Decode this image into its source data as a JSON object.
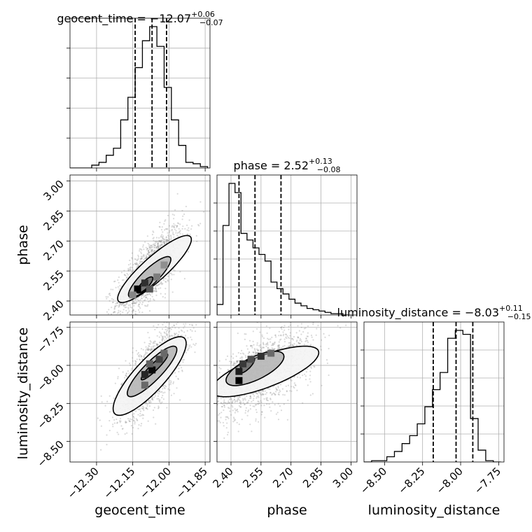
{
  "chart_data": {
    "type": "corner",
    "parameters": [
      "geocent_time",
      "phase",
      "luminosity_distance"
    ],
    "grid": true,
    "titles": {
      "geocent_time": {
        "name": "geocent_time",
        "median": "−12.07",
        "plus": "+0.06",
        "minus": "−0.07"
      },
      "phase": {
        "name": "phase",
        "median": "2.52",
        "plus": "+0.13",
        "minus": "−0.08"
      },
      "luminosity_distance": {
        "name": "luminosity_distance",
        "median": "−8.03",
        "plus": "+0.11",
        "minus": "−0.15"
      }
    },
    "ranges": {
      "geocent_time": [
        -12.41,
        -11.83
      ],
      "phase": [
        2.33,
        3.03
      ],
      "luminosity_distance": [
        -8.635,
        -7.715
      ]
    },
    "tick_labels": {
      "geocent_time": [
        "−12.30",
        "−12.15",
        "−12.00",
        "−11.85"
      ],
      "phase": [
        "2.40",
        "2.55",
        "2.70",
        "2.85",
        "3.00"
      ],
      "luminosity_distance": [
        "−8.50",
        "−8.25",
        "−8.00",
        "−7.75"
      ]
    },
    "tick_values": {
      "geocent_time": [
        -12.3,
        -12.15,
        -12.0,
        -11.85
      ],
      "phase": [
        2.4,
        2.55,
        2.7,
        2.85,
        3.0
      ],
      "luminosity_distance": [
        -8.5,
        -8.25,
        -8.0,
        -7.75
      ]
    },
    "quantiles": {
      "geocent_time": [
        -12.14,
        -12.07,
        -12.01
      ],
      "phase": [
        2.44,
        2.52,
        2.65
      ],
      "luminosity_distance": [
        -8.18,
        -8.03,
        -7.92
      ]
    },
    "histograms": {
      "geocent_time": {
        "edges": [
          -12.41,
          -12.38,
          -12.35,
          -12.32,
          -12.29,
          -12.26,
          -12.23,
          -12.2,
          -12.17,
          -12.14,
          -12.11,
          -12.08,
          -12.05,
          -12.02,
          -11.99,
          -11.96,
          -11.93,
          -11.9,
          -11.87,
          -11.84
        ],
        "counts": [
          0,
          0,
          0,
          2,
          4,
          9,
          14,
          34,
          50,
          71,
          90,
          100,
          86,
          57,
          34,
          16,
          4,
          3,
          1
        ]
      },
      "phase": {
        "edges": [
          2.33,
          2.36,
          2.39,
          2.42,
          2.45,
          2.48,
          2.51,
          2.54,
          2.57,
          2.6,
          2.63,
          2.66,
          2.69,
          2.72,
          2.75,
          2.78,
          2.81,
          2.84,
          2.87,
          2.9,
          2.93,
          2.96,
          2.99
        ],
        "counts": [
          8,
          68,
          100,
          93,
          62,
          57,
          51,
          46,
          41,
          25,
          20,
          16,
          12,
          9,
          7,
          5,
          4,
          3,
          2,
          1,
          1,
          0
        ]
      },
      "luminosity_distance": {
        "edges": [
          -8.635,
          -8.585,
          -8.535,
          -8.485,
          -8.435,
          -8.385,
          -8.335,
          -8.285,
          -8.235,
          -8.185,
          -8.135,
          -8.085,
          -8.035,
          -7.985,
          -7.935,
          -7.885,
          -7.835,
          -7.785,
          -7.735
        ],
        "counts": [
          0,
          1,
          1,
          4,
          8,
          14,
          20,
          29,
          42,
          55,
          68,
          94,
          100,
          97,
          33,
          9,
          1,
          0
        ]
      }
    },
    "pairs": [
      {
        "x": "geocent_time",
        "y": "phase",
        "scatter": {
          "center": [
            -12.08,
            2.55
          ],
          "sd": [
            0.07,
            0.11
          ],
          "corr": 0.75,
          "n": 1600
        },
        "density_cells": [
          {
            "x": -12.13,
            "y": 2.46,
            "v": 1.0
          },
          {
            "x": -12.1,
            "y": 2.49,
            "v": 0.75
          },
          {
            "x": -12.08,
            "y": 2.46,
            "v": 0.55
          },
          {
            "x": -12.05,
            "y": 2.52,
            "v": 0.35
          },
          {
            "x": -12.02,
            "y": 2.58,
            "v": 0.25
          },
          {
            "x": -12.15,
            "y": 2.43,
            "v": 0.3
          }
        ],
        "contours": [
          {
            "center": [
              -12.1,
              2.48
            ],
            "semi_major": 0.05,
            "semi_minor": 0.016,
            "angle": 52
          },
          {
            "center": [
              -12.08,
              2.52
            ],
            "semi_major": 0.13,
            "semi_minor": 0.035,
            "angle": 50
          },
          {
            "center": [
              -12.06,
              2.56
            ],
            "semi_major": 0.22,
            "semi_minor": 0.055,
            "angle": 48
          }
        ]
      },
      {
        "x": "geocent_time",
        "y": "luminosity_distance",
        "scatter": {
          "center": [
            -12.07,
            -8.05
          ],
          "sd": [
            0.07,
            0.15
          ],
          "corr": 0.72,
          "n": 1600
        },
        "density_cells": [
          {
            "x": -12.07,
            "y": -8.03,
            "v": 0.95
          },
          {
            "x": -12.1,
            "y": -8.06,
            "v": 0.8
          },
          {
            "x": -12.04,
            "y": -7.96,
            "v": 0.65
          },
          {
            "x": -12.1,
            "y": -8.13,
            "v": 0.45
          },
          {
            "x": -12.02,
            "y": -7.92,
            "v": 0.45
          },
          {
            "x": -12.08,
            "y": -7.99,
            "v": 0.5
          }
        ],
        "contours": [
          {
            "center": [
              -12.06,
              -8.01
            ],
            "semi_major": 0.1,
            "semi_minor": 0.018,
            "angle": 58
          },
          {
            "center": [
              -12.07,
              -8.04
            ],
            "semi_major": 0.19,
            "semi_minor": 0.045,
            "angle": 60
          },
          {
            "center": [
              -12.08,
              -8.07
            ],
            "semi_major": 0.29,
            "semi_minor": 0.075,
            "angle": 62
          }
        ]
      },
      {
        "x": "phase",
        "y": "luminosity_distance",
        "scatter": {
          "center": [
            2.55,
            -8.05
          ],
          "sd": [
            0.13,
            0.14
          ],
          "corr": 0.6,
          "n": 1600
        },
        "density_cells": [
          {
            "x": 2.44,
            "y": -8.1,
            "v": 1.0
          },
          {
            "x": 2.44,
            "y": -8.04,
            "v": 0.85
          },
          {
            "x": 2.46,
            "y": -7.99,
            "v": 0.7
          },
          {
            "x": 2.5,
            "y": -7.96,
            "v": 0.6
          },
          {
            "x": 2.55,
            "y": -7.94,
            "v": 0.75
          },
          {
            "x": 2.6,
            "y": -7.92,
            "v": 0.45
          }
        ],
        "contours": [
          {
            "center": [
              2.48,
              -8.0
            ],
            "semi_major": 0.06,
            "semi_minor": 0.02,
            "angle": 55
          },
          {
            "center": [
              2.52,
              -8.02
            ],
            "semi_major": 0.17,
            "semi_minor": 0.07,
            "angle": 35
          },
          {
            "center": [
              2.57,
              -8.04
            ],
            "semi_major": 0.3,
            "semi_minor": 0.1,
            "angle": 28
          }
        ]
      }
    ]
  }
}
